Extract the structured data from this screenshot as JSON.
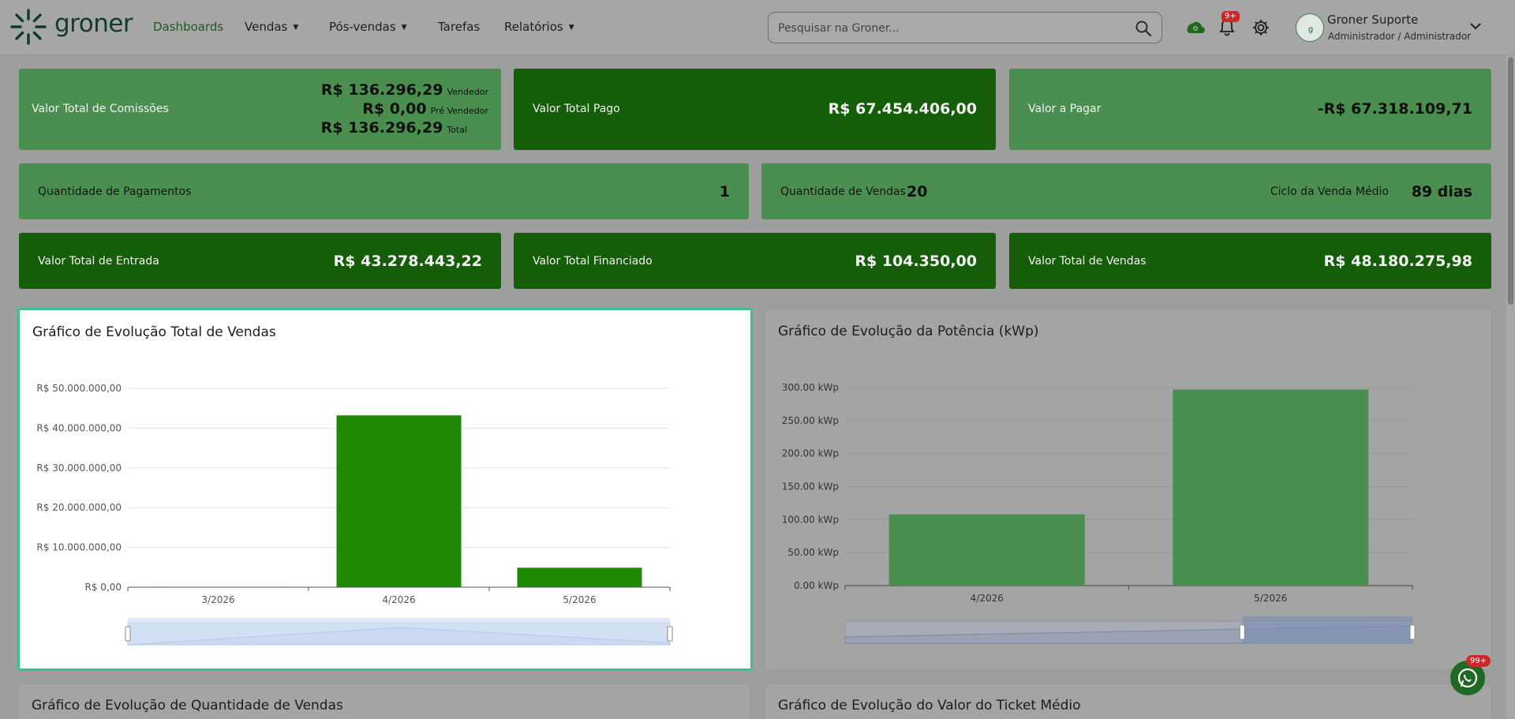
{
  "brand": {
    "name": "groner",
    "color": "#113c2c"
  },
  "nav": {
    "items": [
      {
        "label": "Dashboards",
        "active": true,
        "dropdown": false
      },
      {
        "label": "Vendas",
        "active": false,
        "dropdown": true
      },
      {
        "label": "Pós-vendas",
        "active": false,
        "dropdown": true
      },
      {
        "label": "Tarefas",
        "active": false,
        "dropdown": false
      },
      {
        "label": "Relatórios",
        "active": false,
        "dropdown": true
      }
    ]
  },
  "search": {
    "placeholder": "Pesquisar na Groner..."
  },
  "toolbar": {
    "notifications_badge": "9+"
  },
  "user": {
    "name": "Groner Suporte",
    "role": "Administrador / Administrador"
  },
  "kpis": {
    "commissions": {
      "label": "Valor Total de Comissões",
      "lines": [
        {
          "value": "R$ 136.296,29",
          "sub": "Vendedor"
        },
        {
          "value": "R$ 0,00",
          "sub": "Pré Vendedor"
        },
        {
          "value": "R$ 136.296,29",
          "sub": "Total"
        }
      ]
    },
    "total_pago": {
      "label": "Valor Total Pago",
      "value": "R$ 67.454.406,00"
    },
    "a_pagar": {
      "label": "Valor a Pagar",
      "value": "-R$ 67.318.109,71"
    },
    "qtd_pagamentos": {
      "label": "Quantidade de Pagamentos",
      "value": "1"
    },
    "qtd_vendas": {
      "label": "Quantidade de Vendas",
      "value": "20",
      "cycle_label": "Ciclo da Venda Médio",
      "cycle_value": "89 dias"
    },
    "entrada": {
      "label": "Valor Total de Entrada",
      "value": "R$ 43.278.443,22"
    },
    "financiado": {
      "label": "Valor Total Financiado",
      "value": "R$ 104.350,00"
    },
    "total_vendas": {
      "label": "Valor Total de Vendas",
      "value": "R$ 48.180.275,98"
    }
  },
  "colors": {
    "card_light": "#4a8f50",
    "card_dark": "#155d09",
    "bar_active": "#1e8a06",
    "bar_dim": "#4a8f50",
    "accent_border": "#3ebf93"
  },
  "chart_data": [
    {
      "type": "bar",
      "title": "Gráfico de Evolução Total de Vendas",
      "categories": [
        "3/2026",
        "4/2026",
        "5/2026"
      ],
      "values": [
        100000,
        43200000,
        4900000
      ],
      "ylim": [
        0,
        50000000
      ],
      "yticks": [
        "R$ 0,00",
        "R$ 10.000.000,00",
        "R$ 20.000.000,00",
        "R$ 30.000.000,00",
        "R$ 40.000.000,00",
        "R$ 50.000.000,00"
      ],
      "grid": true,
      "zoom_range": [
        0,
        1
      ]
    },
    {
      "type": "bar",
      "title": "Gráfico de Evolução da Potência (kWp)",
      "categories": [
        "4/2026",
        "5/2026"
      ],
      "values": [
        108,
        297
      ],
      "ylim": [
        0,
        300
      ],
      "yticks": [
        "0.00 kWp",
        "50.00 kWp",
        "100.00 kWp",
        "150.00 kWp",
        "200.00 kWp",
        "250.00 kWp",
        "300.00 kWp"
      ],
      "grid": true,
      "zoom_range": [
        0.7,
        1
      ]
    }
  ],
  "lower_charts": {
    "qtd_vendas_title": "Gráfico de Evolução de Quantidade de Vendas",
    "ticket_medio_title": "Gráfico de Evolução do Valor do Ticket Médio"
  },
  "whatsapp": {
    "badge": "99+"
  }
}
